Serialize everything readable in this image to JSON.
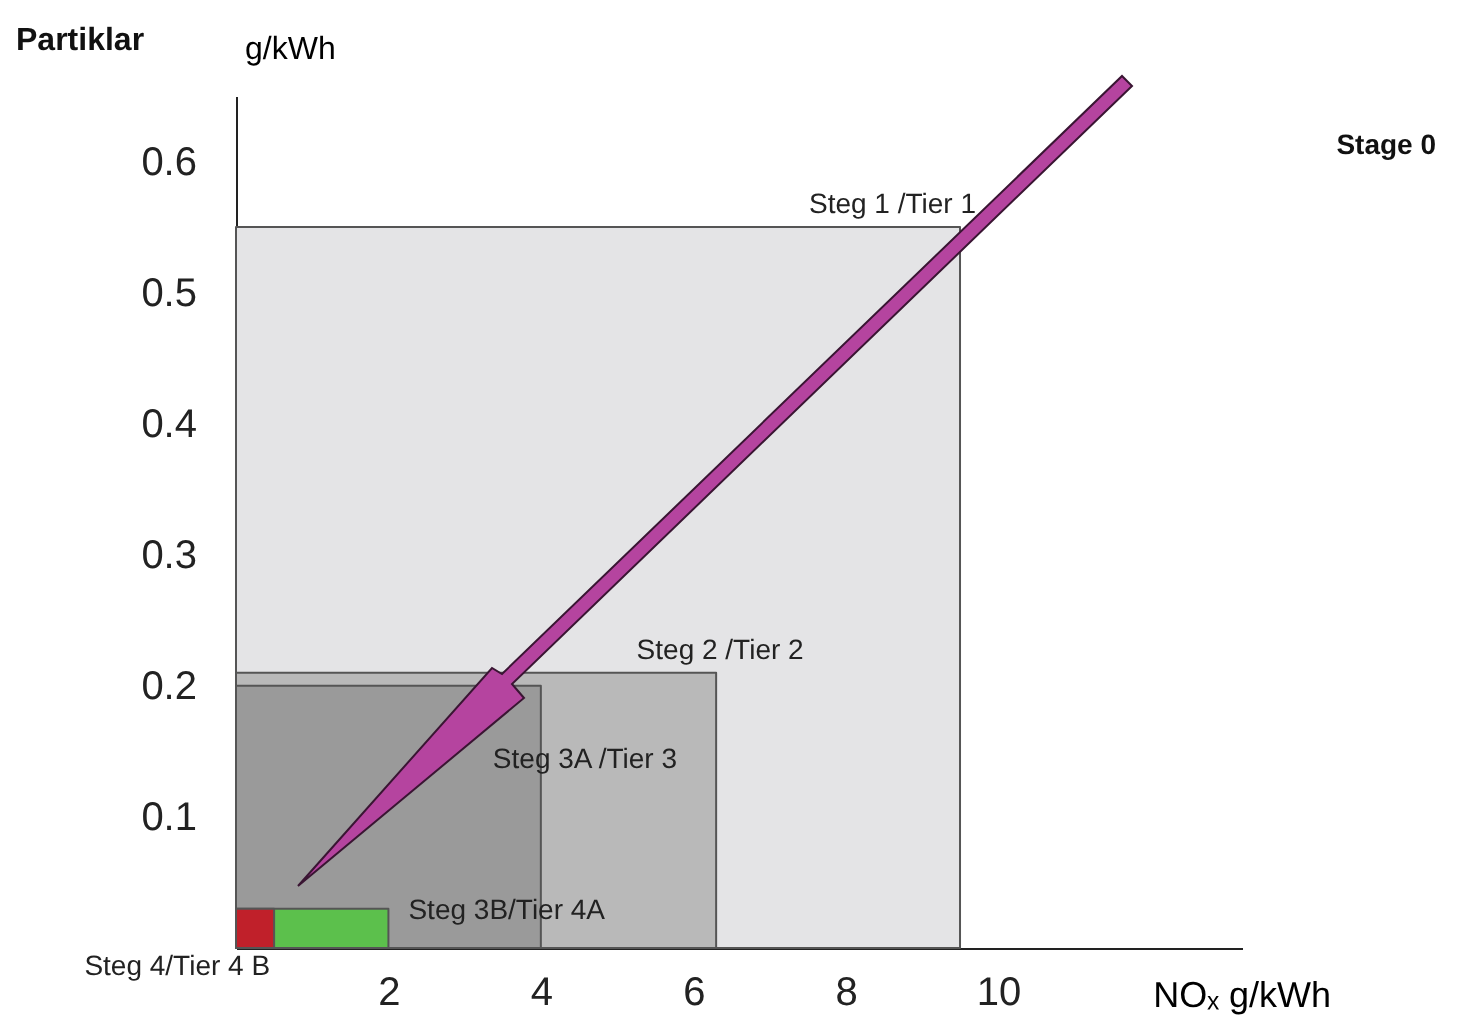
{
  "chart_data": {
    "type": "area",
    "title": "Partiklar",
    "ylabel": "g/kWh",
    "xlabel": "NOₓ g/kWh",
    "xlim": [
      0,
      13.2
    ],
    "ylim": [
      0,
      0.65
    ],
    "xticks": [
      2,
      4,
      6,
      8,
      10
    ],
    "yticks": [
      0.1,
      0.2,
      0.3,
      0.4,
      0.5,
      0.6
    ],
    "annotations": [
      "Stage 0"
    ],
    "series": [
      {
        "name": "Steg 1 /Tier 1",
        "color": "#e4e4e6",
        "x": [
          0,
          9.5
        ],
        "values": [
          0.55,
          0.55
        ]
      },
      {
        "name": "Steg 2 /Tier 2",
        "color": "#b9b9b9",
        "x": [
          0,
          6.3
        ],
        "values": [
          0.21,
          0.21
        ]
      },
      {
        "name": "Steg 3A /Tier 3",
        "color": "#9a9a9a",
        "x": [
          0,
          4.0
        ],
        "values": [
          0.2,
          0.2
        ]
      },
      {
        "name": "Steg 3B/Tier 4A",
        "color": "#5cc04c",
        "x": [
          0,
          2.0
        ],
        "values": [
          0.03,
          0.03
        ]
      },
      {
        "name": "Steg 4/Tier 4 B",
        "color": "#c0202a",
        "x": [
          0,
          0.5
        ],
        "values": [
          0.03,
          0.03
        ]
      }
    ]
  }
}
